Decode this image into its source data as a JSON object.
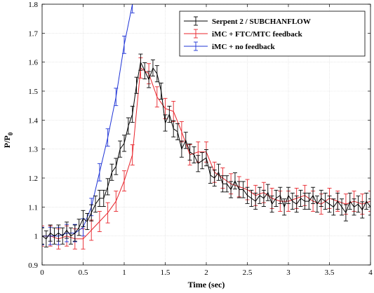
{
  "chart_data": {
    "type": "line",
    "title": "",
    "xlabel": "Time (sec)",
    "ylabel_main": "P/P",
    "ylabel_sub": "0",
    "xlim": [
      0,
      4
    ],
    "ylim": [
      0.9,
      1.8
    ],
    "xticks": [
      "0",
      "0.5",
      "1",
      "1.5",
      "2",
      "2.5",
      "3",
      "3.5",
      "4"
    ],
    "yticks": [
      "0.9",
      "1",
      "1.1",
      "1.2",
      "1.3",
      "1.4",
      "1.5",
      "1.6",
      "1.7",
      "1.8"
    ],
    "grid": true,
    "legend_position": "top-right",
    "series": [
      {
        "name": "Serpent 2 / SUBCHANFLOW",
        "color": "#000000",
        "error": 0.028,
        "x": [
          0,
          0.05,
          0.1,
          0.15,
          0.2,
          0.25,
          0.3,
          0.35,
          0.4,
          0.45,
          0.5,
          0.55,
          0.6,
          0.65,
          0.7,
          0.75,
          0.8,
          0.85,
          0.9,
          0.95,
          1.0,
          1.05,
          1.1,
          1.15,
          1.2,
          1.25,
          1.3,
          1.35,
          1.4,
          1.45,
          1.5,
          1.55,
          1.6,
          1.65,
          1.7,
          1.75,
          1.8,
          1.85,
          1.9,
          1.95,
          2.0,
          2.05,
          2.1,
          2.15,
          2.2,
          2.25,
          2.3,
          2.35,
          2.4,
          2.45,
          2.5,
          2.55,
          2.6,
          2.65,
          2.7,
          2.75,
          2.8,
          2.85,
          2.9,
          2.95,
          3.0,
          3.05,
          3.1,
          3.15,
          3.2,
          3.25,
          3.3,
          3.35,
          3.4,
          3.45,
          3.5,
          3.55,
          3.6,
          3.65,
          3.7,
          3.75,
          3.8,
          3.85,
          3.9,
          3.95,
          4.0
        ],
        "y": [
          1.0,
          0.99,
          1.01,
          1.0,
          1.01,
          1.0,
          1.02,
          1.0,
          1.01,
          1.03,
          1.06,
          1.05,
          1.08,
          1.11,
          1.13,
          1.13,
          1.17,
          1.22,
          1.24,
          1.3,
          1.32,
          1.38,
          1.42,
          1.52,
          1.6,
          1.57,
          1.54,
          1.58,
          1.56,
          1.5,
          1.39,
          1.42,
          1.37,
          1.36,
          1.3,
          1.33,
          1.29,
          1.28,
          1.25,
          1.26,
          1.27,
          1.21,
          1.2,
          1.22,
          1.18,
          1.18,
          1.16,
          1.19,
          1.16,
          1.16,
          1.14,
          1.13,
          1.12,
          1.14,
          1.13,
          1.15,
          1.11,
          1.13,
          1.14,
          1.1,
          1.14,
          1.12,
          1.11,
          1.13,
          1.12,
          1.12,
          1.14,
          1.11,
          1.13,
          1.12,
          1.11,
          1.1,
          1.12,
          1.1,
          1.08,
          1.12,
          1.1,
          1.11,
          1.09,
          1.12,
          1.1
        ]
      },
      {
        "name": "iMC + FTC/MTC feedback",
        "color": "#e8242b",
        "error": 0.035,
        "x": [
          0,
          0.1,
          0.2,
          0.3,
          0.4,
          0.5,
          0.6,
          0.7,
          0.8,
          0.9,
          1.0,
          1.1,
          1.2,
          1.3,
          1.4,
          1.5,
          1.6,
          1.7,
          1.8,
          1.9,
          2.0,
          2.1,
          2.2,
          2.3,
          2.4,
          2.5,
          2.6,
          2.7,
          2.8,
          2.9,
          3.0,
          3.1,
          3.2,
          3.3,
          3.4,
          3.5,
          3.6,
          3.7,
          3.8,
          3.9,
          4.0
        ],
        "y": [
          1.0,
          1.0,
          0.99,
          1.0,
          0.99,
          0.99,
          1.02,
          1.05,
          1.08,
          1.12,
          1.19,
          1.28,
          1.58,
          1.56,
          1.48,
          1.44,
          1.43,
          1.36,
          1.28,
          1.29,
          1.29,
          1.22,
          1.2,
          1.18,
          1.17,
          1.16,
          1.14,
          1.15,
          1.13,
          1.12,
          1.12,
          1.13,
          1.14,
          1.12,
          1.11,
          1.13,
          1.12,
          1.11,
          1.12,
          1.11,
          1.12
        ]
      },
      {
        "name": "iMC + no feedback",
        "color": "#1f34d6",
        "error": 0.03,
        "x": [
          0,
          0.1,
          0.2,
          0.3,
          0.4,
          0.5,
          0.6,
          0.7,
          0.8,
          0.9,
          1.0,
          1.1
        ],
        "y": [
          1.0,
          1.0,
          1.0,
          1.01,
          1.01,
          1.03,
          1.1,
          1.22,
          1.34,
          1.48,
          1.66,
          1.8
        ]
      }
    ]
  }
}
